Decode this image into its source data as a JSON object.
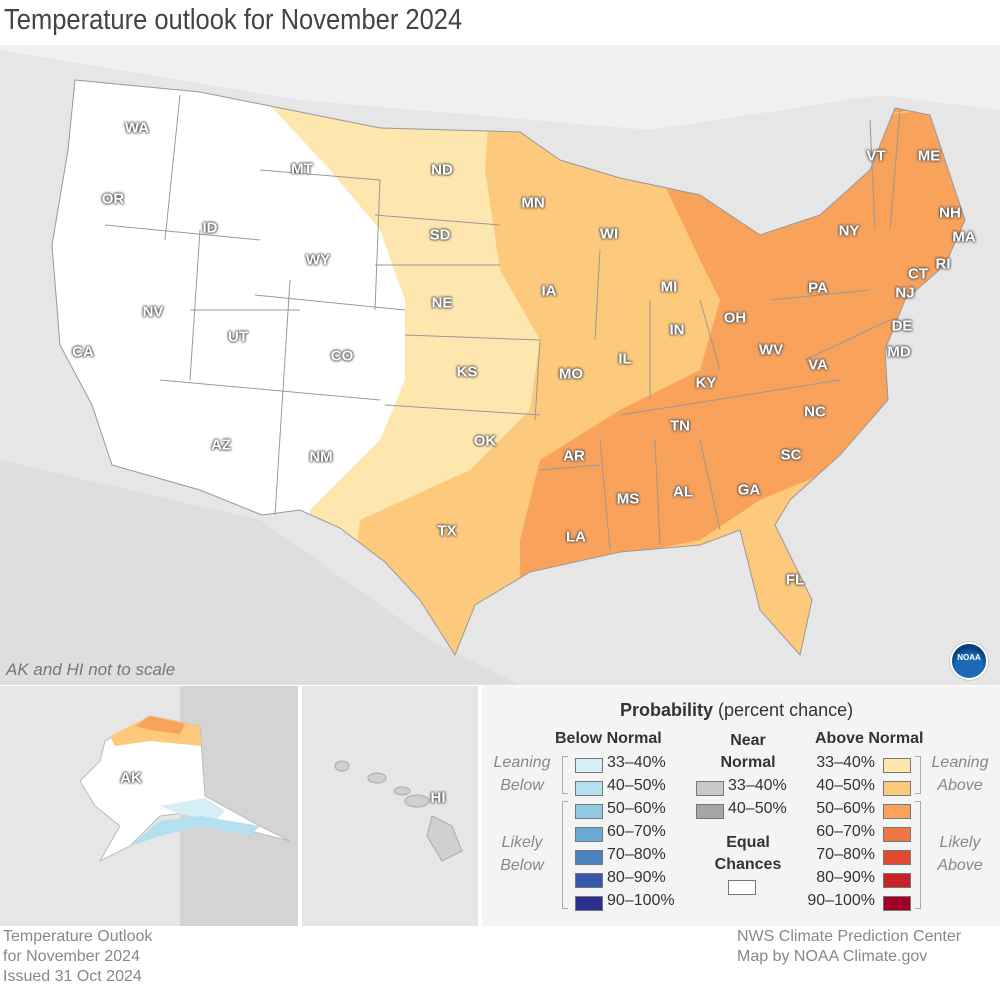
{
  "title": "Temperature outlook for November 2024",
  "map_note": "AK and HI not to scale",
  "logo": "NOAA",
  "states": [
    "WA",
    "OR",
    "CA",
    "ID",
    "NV",
    "MT",
    "WY",
    "UT",
    "AZ",
    "CO",
    "NM",
    "ND",
    "SD",
    "NE",
    "KS",
    "OK",
    "TX",
    "MN",
    "IA",
    "MO",
    "AR",
    "LA",
    "WI",
    "IL",
    "MI",
    "IN",
    "OH",
    "KY",
    "TN",
    "MS",
    "AL",
    "GA",
    "SC",
    "NC",
    "VA",
    "WV",
    "PA",
    "NY",
    "VT",
    "ME",
    "NH",
    "MA",
    "RI",
    "CT",
    "NJ",
    "DE",
    "MD",
    "FL",
    "AK",
    "HI"
  ],
  "legend": {
    "title_bold": "Probability",
    "title_rest": "(percent chance)",
    "below": {
      "header": "Below Normal",
      "leaning": "Leaning Below",
      "likely": "Likely Below",
      "items": [
        {
          "label": "33–40%",
          "color": "#d6eef6"
        },
        {
          "label": "40–50%",
          "color": "#b3dfee"
        },
        {
          "label": "50–60%",
          "color": "#92c9e0"
        },
        {
          "label": "60–70%",
          "color": "#6aa9d1"
        },
        {
          "label": "70–80%",
          "color": "#4a82c0"
        },
        {
          "label": "80–90%",
          "color": "#3658a8"
        },
        {
          "label": "90–100%",
          "color": "#2b2f8f"
        }
      ]
    },
    "near": {
      "header": "Near Normal",
      "items": [
        {
          "label": "33–40%",
          "color": "#c8c8c8"
        },
        {
          "label": "40–50%",
          "color": "#a5a5a5"
        }
      ],
      "equal": "Equal Chances",
      "equal_color": "#ffffff"
    },
    "above": {
      "header": "Above Normal",
      "leaning": "Leaning Above",
      "likely": "Likely Above",
      "items": [
        {
          "label": "33–40%",
          "color": "#fde7ae"
        },
        {
          "label": "40–50%",
          "color": "#fdc97c"
        },
        {
          "label": "50–60%",
          "color": "#f9a25c"
        },
        {
          "label": "60–70%",
          "color": "#f17646"
        },
        {
          "label": "70–80%",
          "color": "#e04a30"
        },
        {
          "label": "80–90%",
          "color": "#c82128"
        },
        {
          "label": "90–100%",
          "color": "#a10026"
        }
      ]
    }
  },
  "footer": {
    "left": [
      "Temperature Outlook",
      "for November 2024",
      "Issued 31 Oct 2024"
    ],
    "right": [
      "NWS Climate Prediction Center",
      "Map by NOAA Climate.gov"
    ]
  }
}
